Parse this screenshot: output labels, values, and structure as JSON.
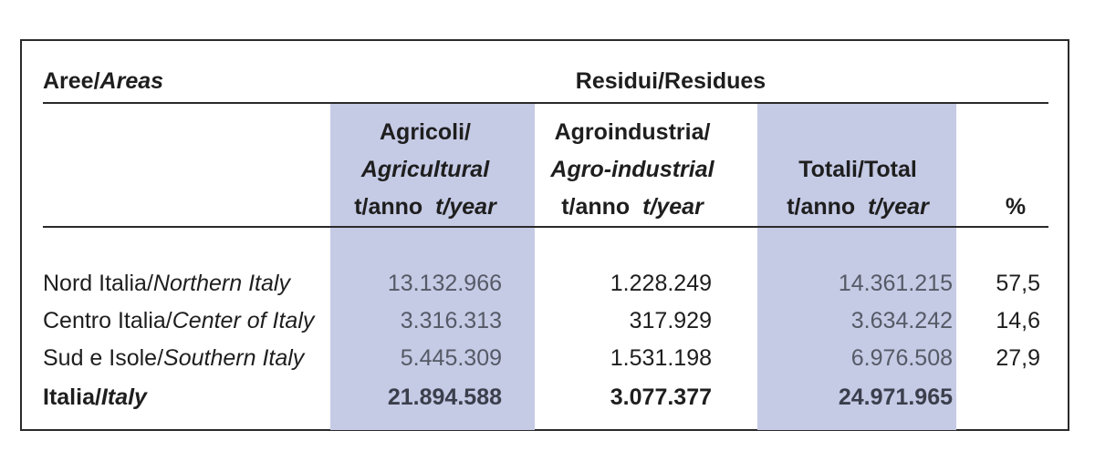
{
  "header": {
    "areas_it": "Aree/",
    "areas_en": "Areas",
    "residues": "Residui/Residues"
  },
  "columns": {
    "agri_line1": "Agricoli/",
    "agri_line2": "Agricultural",
    "agri_unit_it": "t/anno",
    "agri_unit_en": "t/year",
    "agro_line1": "Agroindustria/",
    "agro_line2": "Agro-industrial",
    "agro_unit_it": "t/anno",
    "agro_unit_en": "t/year",
    "tot_line1": "Totali/Total",
    "tot_unit_it": "t/anno",
    "tot_unit_en": "t/year",
    "pct": "%"
  },
  "rows": [
    {
      "area_it": "Nord Italia/",
      "area_en": "Northern Italy",
      "agri": "13.132.966",
      "agro": "1.228.249",
      "tot": "14.361.215",
      "pct": "57,5"
    },
    {
      "area_it": "Centro Italia/",
      "area_en": "Center of Italy",
      "agri": "3.316.313",
      "agro": "317.929",
      "tot": "3.634.242",
      "pct": "14,6"
    },
    {
      "area_it": "Sud e Isole/",
      "area_en": "Southern Italy",
      "agri": "5.445.309",
      "agro": "1.531.198",
      "tot": "6.976.508",
      "pct": "27,9"
    }
  ],
  "total": {
    "area_it": "Italia/",
    "area_en": "Italy",
    "agri": "21.894.588",
    "agro": "3.077.377",
    "tot": "24.971.965"
  },
  "colors": {
    "shade": "#c5cae5",
    "text": "#1e1e1e",
    "light_text": "#555a66"
  }
}
